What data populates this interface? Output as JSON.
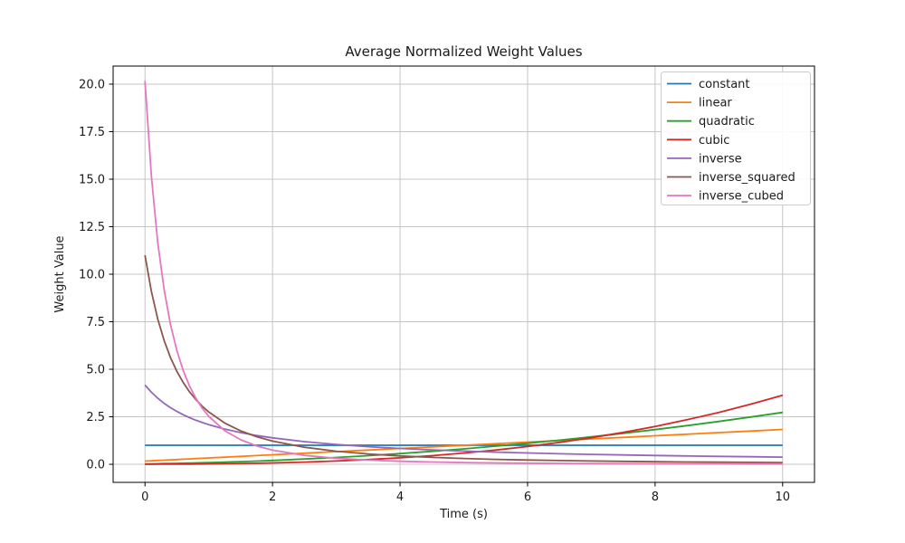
{
  "chart_data": {
    "type": "line",
    "title": "Average Normalized Weight Values",
    "xlabel": "Time (s)",
    "ylabel": "Weight Value",
    "grid": true,
    "legend_position": "upper right",
    "axes": {
      "xlim": [
        -0.5,
        10.5
      ],
      "ylim": [
        -0.95,
        20.95
      ],
      "xticks": [
        0,
        2,
        4,
        6,
        8,
        10
      ],
      "xtick_labels": [
        "0",
        "2",
        "4",
        "6",
        "8",
        "10"
      ],
      "yticks": [
        0,
        2.5,
        5,
        7.5,
        10,
        12.5,
        15,
        17.5,
        20
      ],
      "ytick_labels": [
        "0.0",
        "2.5",
        "5.0",
        "7.5",
        "10.0",
        "12.5",
        "15.0",
        "17.5",
        "20.0"
      ]
    },
    "style": {
      "grid_color": "#c4c4c4",
      "spine_color": "#000000",
      "text_color": "#1a1a1a",
      "legend_border_color": "#cccccc",
      "background_color": "#ffffff",
      "line_width": 1.8
    },
    "x": [
      0,
      0.1,
      0.2,
      0.3,
      0.4,
      0.5,
      0.6,
      0.7,
      0.8,
      0.9,
      1,
      1.25,
      1.5,
      1.75,
      2,
      2.5,
      3,
      3.5,
      4,
      4.5,
      5,
      5.5,
      6,
      6.5,
      7,
      7.5,
      8,
      8.5,
      9,
      9.5,
      10
    ],
    "series": [
      {
        "name": "constant",
        "color": "#1f77b4",
        "values": [
          1,
          1,
          1,
          1,
          1,
          1,
          1,
          1,
          1,
          1,
          1,
          1,
          1,
          1,
          1,
          1,
          1,
          1,
          1,
          1,
          1,
          1,
          1,
          1,
          1,
          1,
          1,
          1,
          1,
          1,
          1
        ]
      },
      {
        "name": "linear",
        "color": "#ff7f0e",
        "values": [
          0.1667,
          0.1833,
          0.2,
          0.2167,
          0.2333,
          0.25,
          0.2667,
          0.2833,
          0.3,
          0.3167,
          0.3333,
          0.375,
          0.4167,
          0.4583,
          0.5,
          0.5833,
          0.6667,
          0.75,
          0.8333,
          0.9167,
          1,
          1.0833,
          1.1667,
          1.25,
          1.3333,
          1.4167,
          1.5,
          1.5833,
          1.6667,
          1.75,
          1.8333
        ]
      },
      {
        "name": "quadratic",
        "color": "#2ca02c",
        "values": [
          0.0226,
          0.0273,
          0.0325,
          0.0381,
          0.0442,
          0.0508,
          0.0577,
          0.0652,
          0.0731,
          0.0814,
          0.0902,
          0.1142,
          0.141,
          0.1706,
          0.203,
          0.2763,
          0.3609,
          0.4568,
          0.5639,
          0.6823,
          0.812,
          0.953,
          1.1053,
          1.2688,
          1.4436,
          1.6297,
          1.8271,
          2.0357,
          2.2556,
          2.4868,
          2.7293
        ]
      },
      {
        "name": "cubic",
        "color": "#d62728",
        "values": [
          0.0027,
          0.0036,
          0.0047,
          0.006,
          0.0075,
          0.0092,
          0.0112,
          0.0134,
          0.0159,
          0.0187,
          0.0219,
          0.0311,
          0.0427,
          0.0568,
          0.0738,
          0.1171,
          0.1749,
          0.249,
          0.3415,
          0.4546,
          0.5902,
          0.7504,
          0.9372,
          1.1527,
          1.3989,
          1.6779,
          1.9918,
          2.3425,
          2.7322,
          3.1629,
          3.6366
        ]
      },
      {
        "name": "inverse",
        "color": "#9467bd",
        "values": [
          4.1703,
          3.7912,
          3.4753,
          3.2079,
          2.9788,
          2.7802,
          2.6064,
          2.4531,
          2.3168,
          2.1949,
          2.0852,
          1.8535,
          1.6681,
          1.5165,
          1.3901,
          1.1915,
          1.0426,
          0.9267,
          0.8341,
          0.7582,
          0.6951,
          0.6416,
          0.5958,
          0.556,
          0.5213,
          0.4906,
          0.4634,
          0.439,
          0.417,
          0.3972,
          0.3791
        ]
      },
      {
        "name": "inverse_squared",
        "color": "#8c564b",
        "values": [
          11,
          9.0909,
          7.6389,
          6.5089,
          5.6122,
          4.8889,
          4.2969,
          3.8062,
          3.3951,
          3.0471,
          2.75,
          2.1728,
          1.76,
          1.4545,
          1.2222,
          0.898,
          0.6875,
          0.5432,
          0.44,
          0.3636,
          0.3056,
          0.2604,
          0.2245,
          0.1956,
          0.1719,
          0.1522,
          0.1358,
          0.1219,
          0.11,
          0.0998,
          0.0909
        ]
      },
      {
        "name": "inverse_cubed",
        "color": "#e377c2",
        "values": [
          20.1667,
          15.1516,
          11.6705,
          9.1792,
          7.3494,
          5.9753,
          4.9235,
          4.1048,
          3.4579,
          2.9402,
          2.5208,
          1.7705,
          1.2907,
          0.9697,
          0.7469,
          0.4704,
          0.3151,
          0.2213,
          0.1613,
          0.1212,
          0.0934,
          0.0734,
          0.0588,
          0.0478,
          0.0394,
          0.0328,
          0.0277,
          0.0235,
          0.0202,
          0.0174,
          0.0152
        ]
      }
    ]
  }
}
